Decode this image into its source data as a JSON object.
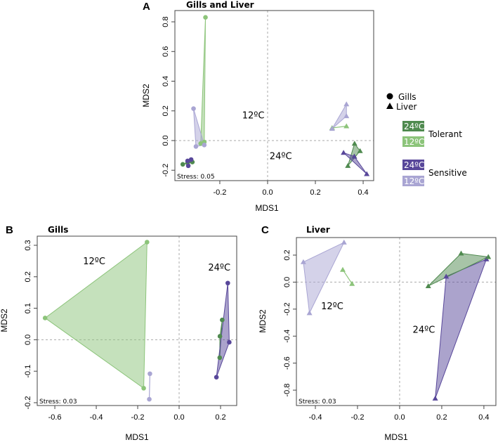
{
  "colors": {
    "tolerant_24": "#4f8a4f",
    "tolerant_12": "#8cc47a",
    "sensitive_24": "#58479a",
    "sensitive_12": "#a9a5d3"
  },
  "legend": {
    "shapes": [
      {
        "shape": "circle",
        "label": "Gills"
      },
      {
        "shape": "triangle",
        "label": "Liver"
      }
    ],
    "groups": [
      {
        "label": "Tolerant",
        "items": [
          {
            "label": "24ºC",
            "key": "tolerant_24"
          },
          {
            "label": "12ºC",
            "key": "tolerant_12"
          }
        ]
      },
      {
        "label": "Sensitive",
        "items": [
          {
            "label": "24ºC",
            "key": "sensitive_24"
          },
          {
            "label": "12ºC",
            "key": "sensitive_12"
          }
        ]
      }
    ]
  },
  "chart_data": [
    {
      "type": "scatter",
      "panel": "A",
      "title": "Gills and Liver",
      "xlabel": "MDS1",
      "ylabel": "MDS2",
      "xlim": [
        -0.388,
        0.444
      ],
      "ylim": [
        -0.27,
        0.876
      ],
      "xticks": [
        -0.2,
        0.0,
        0.2,
        0.4
      ],
      "yticks": [
        -0.2,
        0.0,
        0.2,
        0.4,
        0.6,
        0.8
      ],
      "xtick_labels": [
        "-0.2",
        "0.0",
        "0.2",
        "0.4"
      ],
      "ytick_labels": [
        "-0.2",
        "0.0",
        "0.2",
        "0.4",
        "0.6",
        "0.8"
      ],
      "stress": "Stress: 0.05",
      "annotations": [
        {
          "text": "12ºC",
          "x": -0.06,
          "y": 0.15
        },
        {
          "text": "24ºC",
          "x": 0.055,
          "y": -0.125
        }
      ],
      "series": [
        {
          "name": "Gills Tolerant 12ºC",
          "key": "tolerant_12",
          "shape": "circle",
          "points": [
            [
              -0.26,
              0.83
            ],
            [
              -0.265,
              -0.01
            ],
            [
              -0.28,
              -0.02
            ]
          ]
        },
        {
          "name": "Gills Sensitive 12ºC",
          "key": "sensitive_12",
          "shape": "circle",
          "points": [
            [
              -0.31,
              0.215
            ],
            [
              -0.3,
              -0.04
            ],
            [
              -0.265,
              -0.03
            ]
          ]
        },
        {
          "name": "Gills Tolerant 24ºC",
          "key": "tolerant_24",
          "shape": "circle",
          "points": [
            [
              -0.355,
              -0.16
            ],
            [
              -0.315,
              -0.145
            ],
            [
              -0.335,
              -0.15
            ]
          ]
        },
        {
          "name": "Gills Sensitive 24ºC",
          "key": "sensitive_24",
          "shape": "circle",
          "points": [
            [
              -0.335,
              -0.137
            ],
            [
              -0.32,
              -0.128
            ],
            [
              -0.332,
              -0.17
            ]
          ]
        },
        {
          "name": "Liver Tolerant 12ºC",
          "key": "tolerant_12",
          "shape": "triangle",
          "points": [
            [
              0.27,
              0.085
            ],
            [
              0.33,
              0.097
            ]
          ]
        },
        {
          "name": "Liver Sensitive 12ºC",
          "key": "sensitive_12",
          "shape": "triangle",
          "points": [
            [
              0.33,
              0.245
            ],
            [
              0.33,
              0.165
            ],
            [
              0.27,
              0.08
            ]
          ]
        },
        {
          "name": "Liver Tolerant 24ºC",
          "key": "tolerant_24",
          "shape": "triangle",
          "points": [
            [
              0.364,
              -0.02
            ],
            [
              0.387,
              -0.07
            ],
            [
              0.336,
              -0.17
            ],
            [
              0.363,
              -0.107
            ]
          ]
        },
        {
          "name": "Liver Sensitive 24ºC",
          "key": "sensitive_24",
          "shape": "triangle",
          "points": [
            [
              0.318,
              -0.082
            ],
            [
              0.363,
              -0.107
            ],
            [
              0.415,
              -0.225
            ]
          ]
        }
      ]
    },
    {
      "type": "scatter",
      "panel": "B",
      "title": "Gills",
      "xlabel": "MDS1",
      "ylabel": "MDS2",
      "xlim": [
        -0.685,
        0.278
      ],
      "ylim": [
        -0.209,
        0.329
      ],
      "xticks": [
        -0.6,
        -0.4,
        -0.2,
        0.0,
        0.2
      ],
      "yticks": [
        -0.2,
        -0.1,
        0.0,
        0.1,
        0.2,
        0.3
      ],
      "xtick_labels": [
        "-0.6",
        "-0.4",
        "-0.2",
        "0.0",
        "0.2"
      ],
      "ytick_labels": [
        "-0.2",
        "-0.1",
        "0.0",
        "0.1",
        "0.2",
        "0.3"
      ],
      "stress": "Stress: 0.03",
      "annotations": [
        {
          "text": "12ºC",
          "x": -0.41,
          "y": 0.24
        },
        {
          "text": "24ºC",
          "x": 0.194,
          "y": 0.22
        }
      ],
      "series": [
        {
          "name": "Tolerant 12ºC",
          "key": "tolerant_12",
          "shape": "circle",
          "points": [
            [
              -0.155,
              0.31
            ],
            [
              -0.647,
              0.069
            ],
            [
              -0.171,
              -0.154
            ]
          ]
        },
        {
          "name": "Sensitive 12ºC",
          "key": "sensitive_12",
          "shape": "circle",
          "points": [
            [
              -0.141,
              -0.108
            ],
            [
              -0.144,
              -0.189
            ]
          ]
        },
        {
          "name": "Tolerant 24ºC",
          "key": "tolerant_24",
          "shape": "circle",
          "points": [
            [
              0.208,
              0.063
            ],
            [
              0.197,
              0.011
            ],
            [
              0.196,
              -0.057
            ]
          ]
        },
        {
          "name": "Sensitive 24ºC",
          "key": "sensitive_24",
          "shape": "circle",
          "points": [
            [
              0.235,
              0.18
            ],
            [
              0.242,
              -0.008
            ],
            [
              0.18,
              -0.119
            ]
          ]
        }
      ]
    },
    {
      "type": "scatter",
      "panel": "C",
      "title": "Liver",
      "xlabel": "MDS1",
      "ylabel": "MDS2",
      "xlim": [
        -0.49,
        0.457
      ],
      "ylim": [
        -0.914,
        0.33
      ],
      "xticks": [
        -0.4,
        -0.2,
        0.0,
        0.2,
        0.4
      ],
      "yticks": [
        -0.8,
        -0.6,
        -0.4,
        -0.2,
        0.0,
        0.2
      ],
      "xtick_labels": [
        "-0.4",
        "-0.2",
        "0.0",
        "0.2",
        "0.4"
      ],
      "ytick_labels": [
        "-0.8",
        "-0.6",
        "-0.4",
        "-0.2",
        "0.0",
        "0.2"
      ],
      "stress": "Stress: 0.03",
      "annotations": [
        {
          "text": "12ºC",
          "x": -0.32,
          "y": -0.2
        },
        {
          "text": "24ºC",
          "x": 0.115,
          "y": -0.375
        }
      ],
      "series": [
        {
          "name": "Sensitive 12ºC",
          "key": "sensitive_12",
          "shape": "triangle",
          "points": [
            [
              -0.264,
              0.294
            ],
            [
              -0.457,
              0.149
            ],
            [
              -0.428,
              -0.229
            ]
          ]
        },
        {
          "name": "Tolerant 12ºC",
          "key": "tolerant_12",
          "shape": "triangle",
          "points": [
            [
              -0.27,
              0.092
            ],
            [
              -0.226,
              -0.012
            ]
          ]
        },
        {
          "name": "Sensitive 24ºC",
          "key": "sensitive_24",
          "shape": "triangle",
          "points": [
            [
              0.221,
              0.042
            ],
            [
              0.412,
              0.17
            ],
            [
              0.169,
              -0.861
            ]
          ]
        },
        {
          "name": "Tolerant 24ºC",
          "key": "tolerant_24",
          "shape": "triangle",
          "points": [
            [
              0.136,
              -0.029
            ],
            [
              0.292,
              0.213
            ],
            [
              0.421,
              0.187
            ]
          ]
        }
      ]
    }
  ]
}
